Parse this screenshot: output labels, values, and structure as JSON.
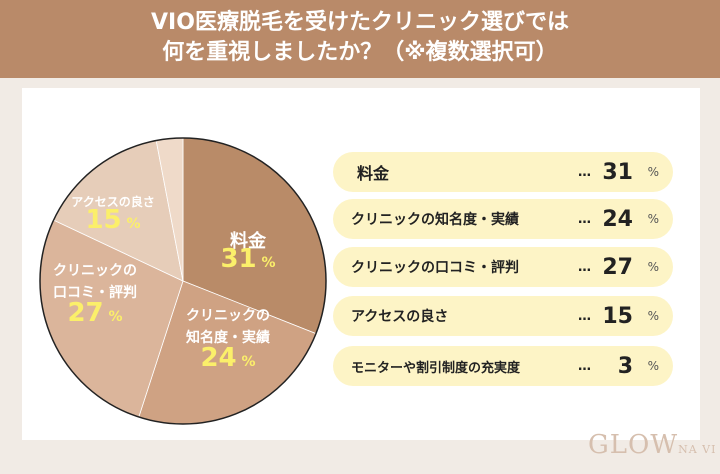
{
  "title": {
    "line1": "VIO医療脱毛を受けたクリニック選びでは",
    "line2": "何を重視しましたか？（※複数選択可）"
  },
  "logo": "GLOW NAVI",
  "chart_data": {
    "type": "pie",
    "unit": "%",
    "start": "12 o'clock, clockwise",
    "slices": [
      {
        "label": "料金",
        "pie_label": [
          "料金"
        ],
        "value": 31,
        "color": "#b98b68"
      },
      {
        "label": "クリニックの知名度・実績",
        "pie_label": [
          "クリニックの",
          "知名度・実績"
        ],
        "value": 24,
        "color": "#cfa283"
      },
      {
        "label": "クリニックの口コミ・評判",
        "pie_label": [
          "クリニックの",
          "口コミ・評判"
        ],
        "value": 27,
        "color": "#dbb59b"
      },
      {
        "label": "アクセスの良さ",
        "pie_label": [
          "アクセスの良さ"
        ],
        "value": 15,
        "color": "#e6cdb9"
      },
      {
        "label": "モニターや割引制度の充実度",
        "pie_label": [],
        "value": 3,
        "color": "#efdac9"
      }
    ]
  },
  "legend": {
    "dots": "…",
    "pct": "%"
  }
}
